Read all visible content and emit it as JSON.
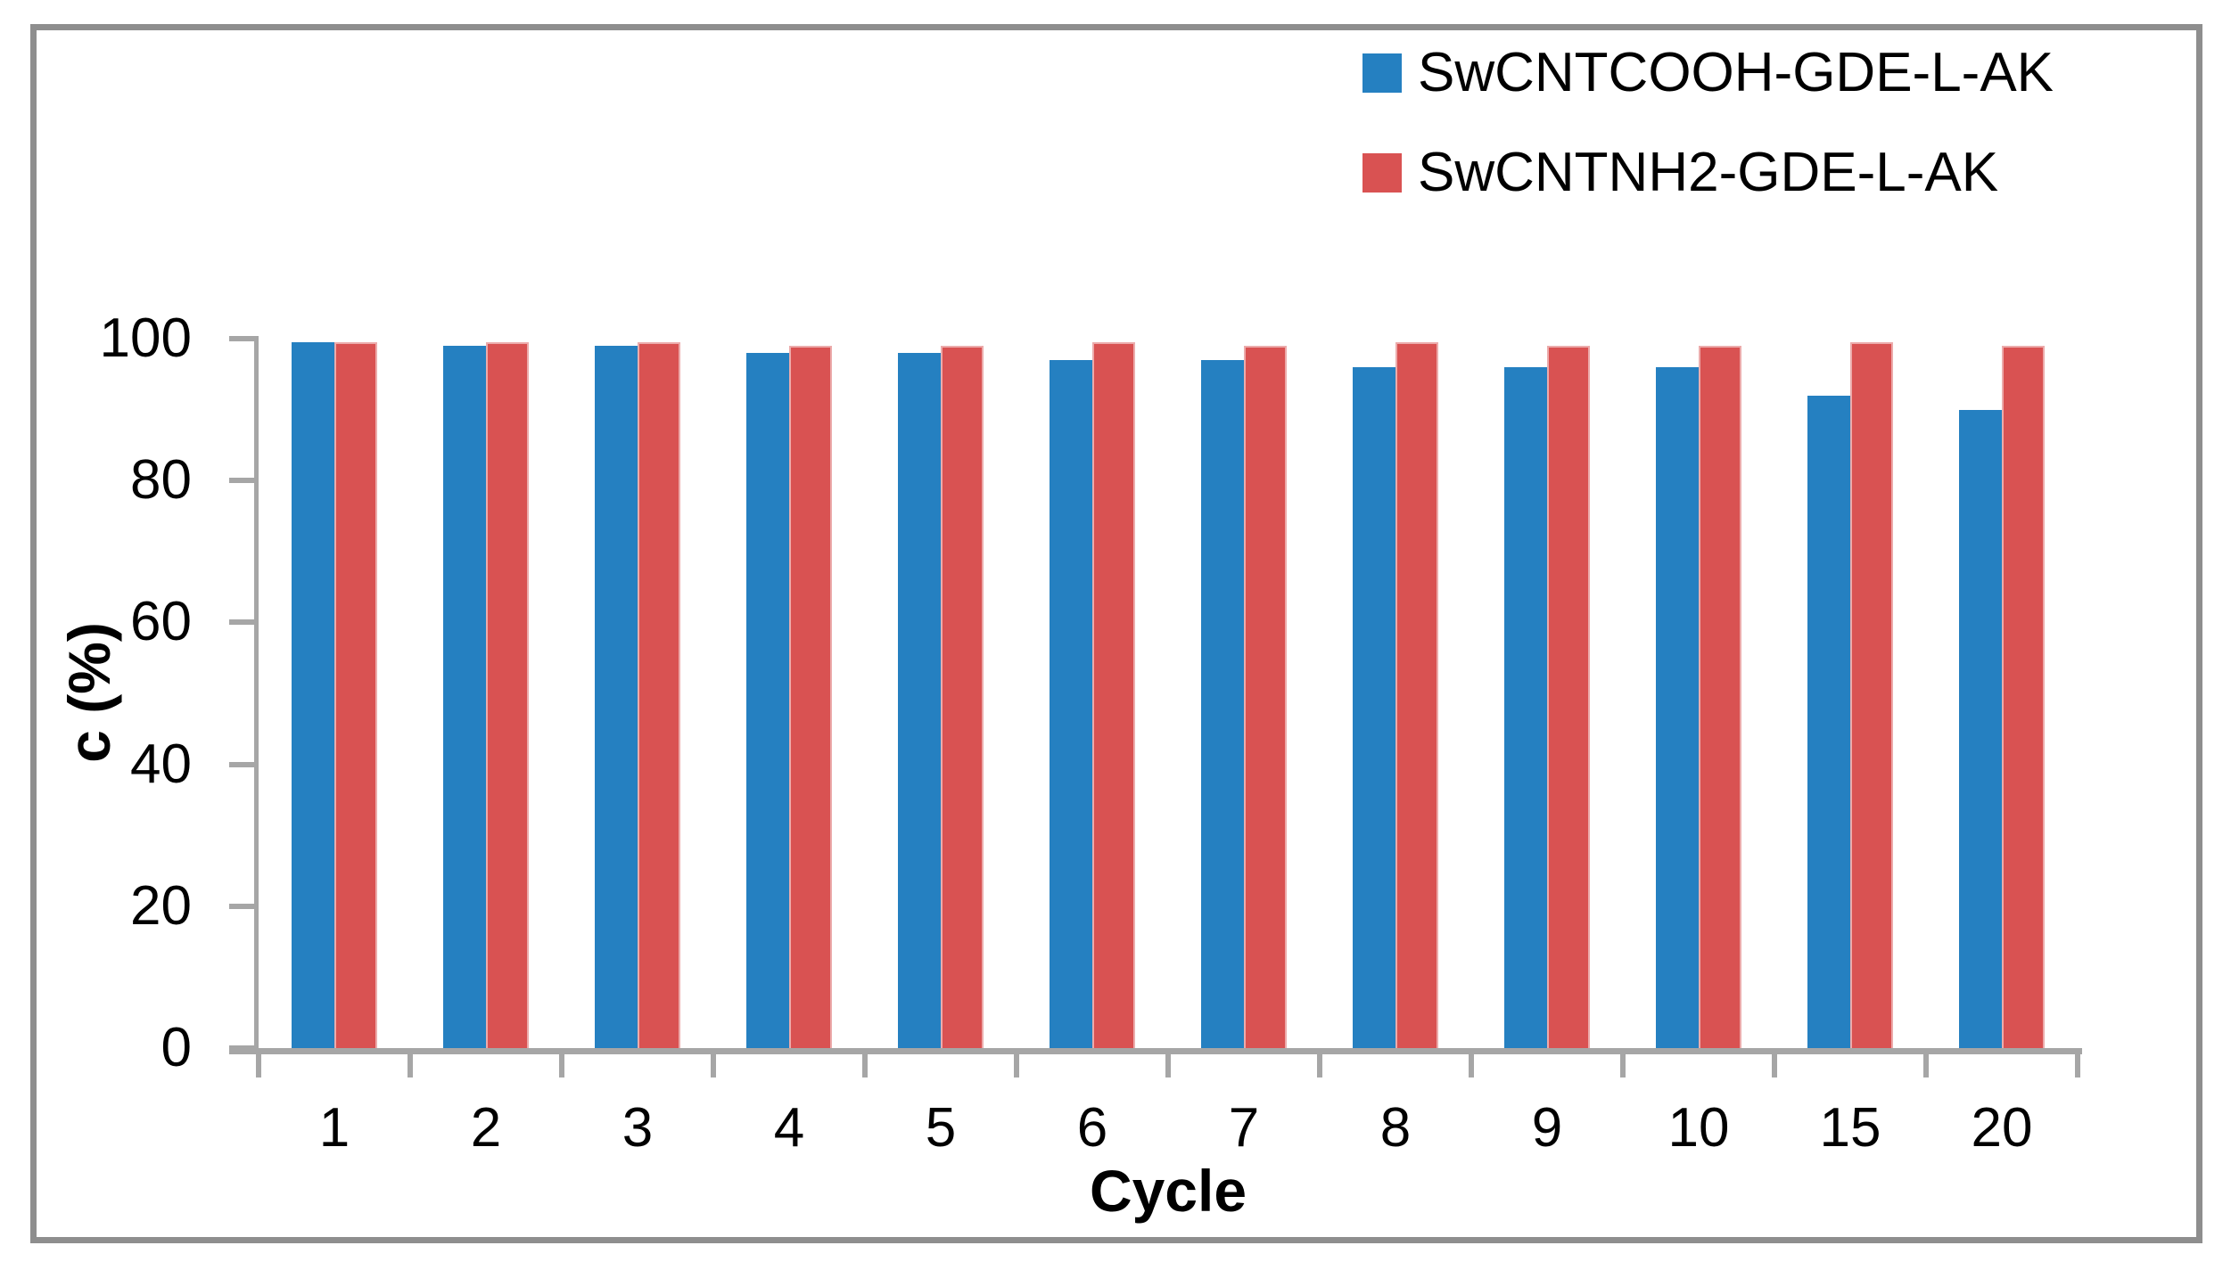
{
  "chart_data": {
    "type": "bar",
    "title": "",
    "categories": [
      "1",
      "2",
      "3",
      "4",
      "5",
      "6",
      "7",
      "8",
      "9",
      "10",
      "15",
      "20"
    ],
    "series": [
      {
        "name": "SwCNTCOOH-GDE-L-AK",
        "color": "#2580C1",
        "values": [
          99.5,
          99,
          99,
          98,
          98,
          97,
          97,
          96,
          96,
          96,
          92,
          90
        ]
      },
      {
        "name": "SwCNTNH2-GDE-L-AK",
        "color": "#D95252",
        "values": [
          99.5,
          99.5,
          99.5,
          99,
          99,
          99.5,
          99,
          99.5,
          99,
          99,
          99.5,
          99
        ]
      }
    ],
    "xlabel": "Cycle",
    "ylabel": "c (%)",
    "ylim": [
      0,
      100
    ],
    "yticks": [
      0,
      20,
      40,
      60,
      80,
      100
    ],
    "grid": false,
    "legend_position": "top-right",
    "axis_color": "#A6A6A6",
    "border_color": "#8E8E8E"
  }
}
